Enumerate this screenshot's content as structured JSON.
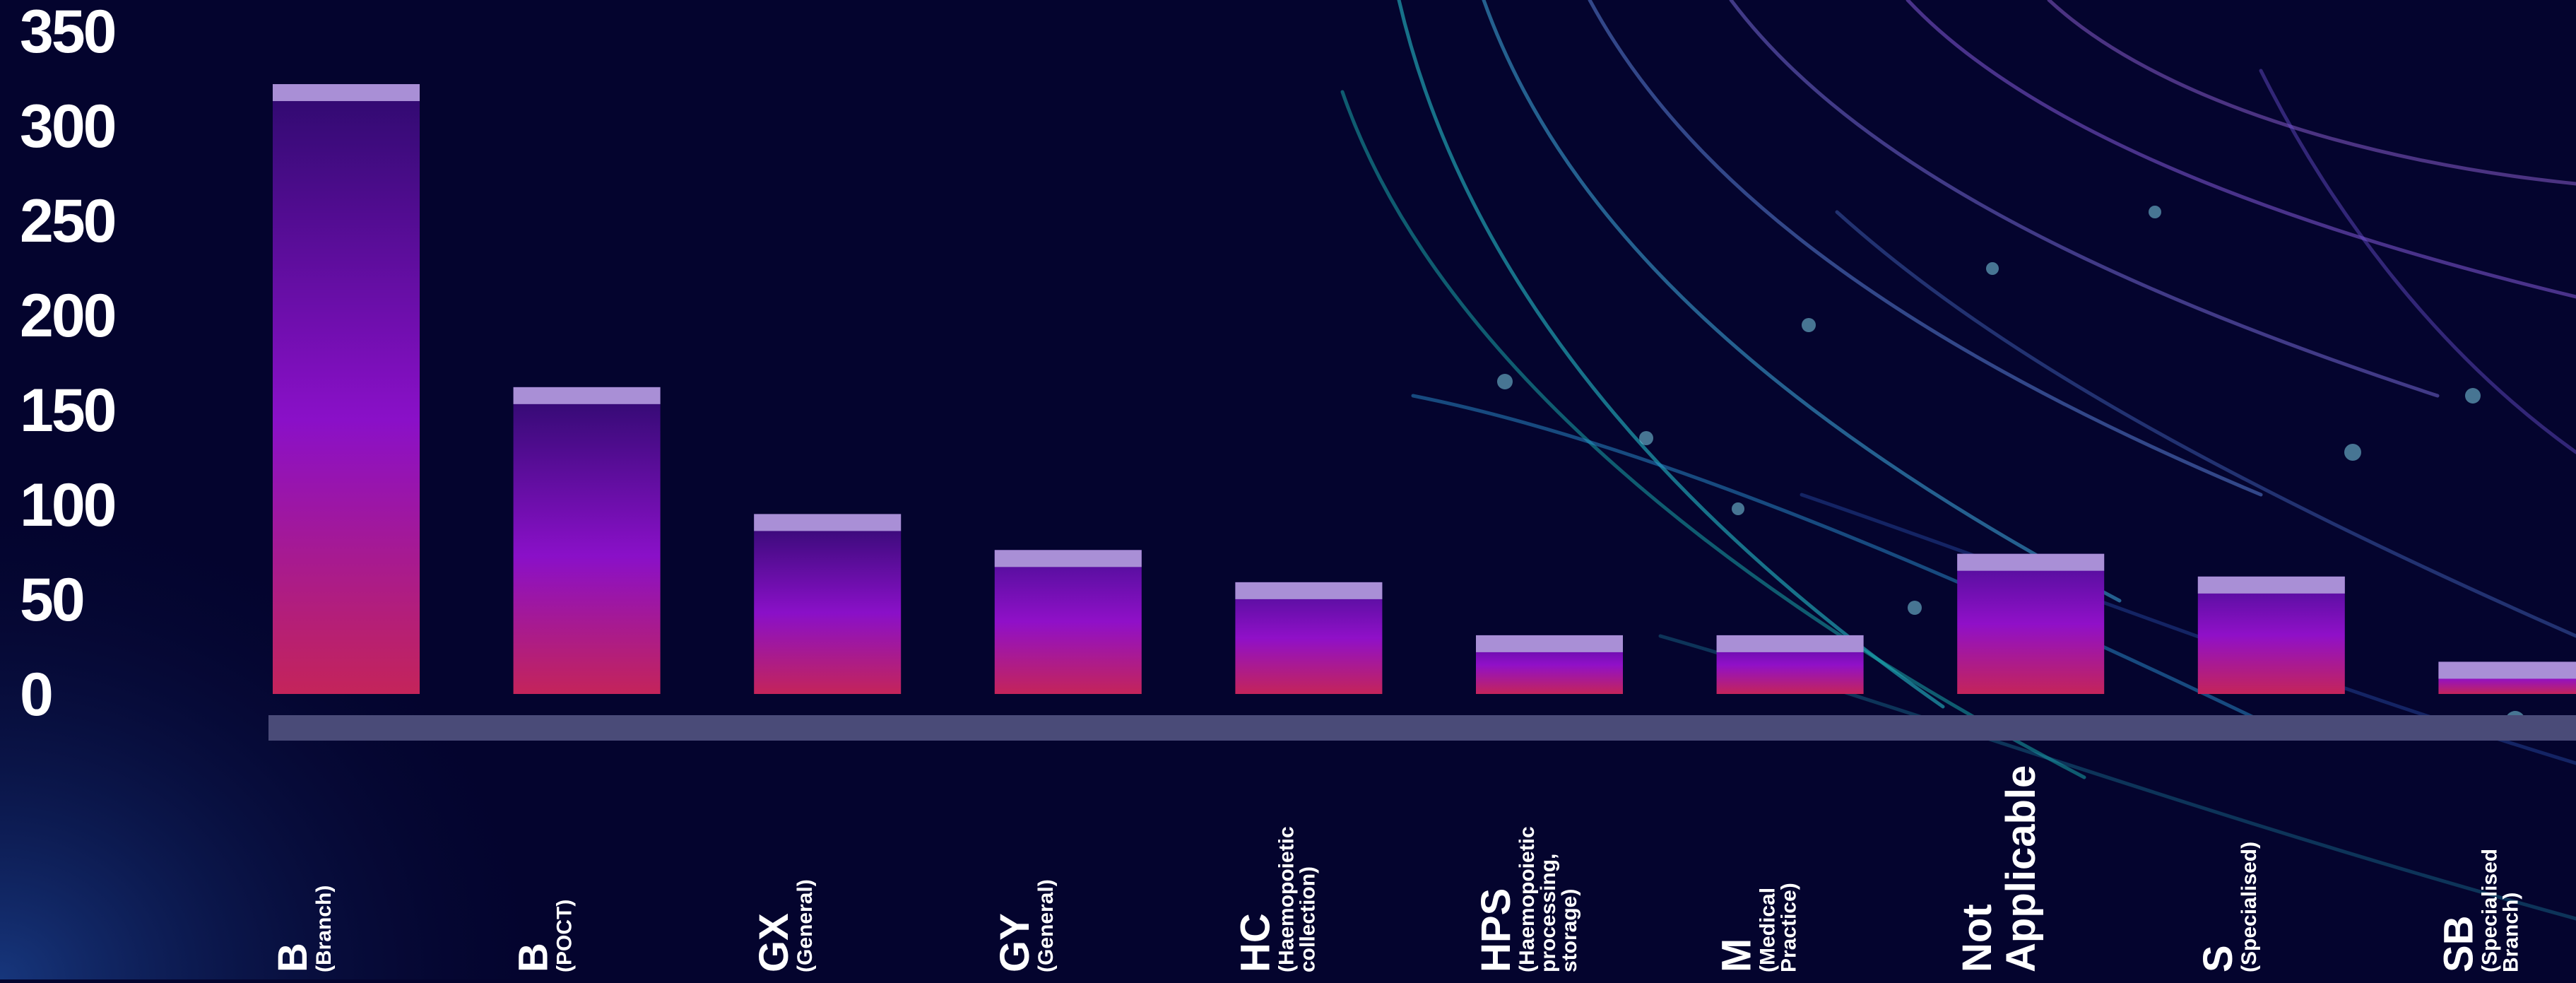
{
  "chart_data": {
    "type": "bar",
    "yticks": [
      "350",
      "300",
      "250",
      "200",
      "150",
      "100",
      "50",
      "0"
    ],
    "ylim": [
      0,
      350
    ],
    "grid": false,
    "legend": "none",
    "categories": [
      {
        "code": "B",
        "sub": [
          "(Branch)"
        ]
      },
      {
        "code": "B",
        "sub": [
          "(POCT)"
        ]
      },
      {
        "code": "GX",
        "sub": [
          "(General)"
        ]
      },
      {
        "code": "GY",
        "sub": [
          "(General)"
        ]
      },
      {
        "code": "HC",
        "sub": [
          "(Haemopoietic",
          "collection)"
        ]
      },
      {
        "code": "HPS",
        "sub": [
          "(Haemopoietic",
          "processing,",
          "storage)"
        ]
      },
      {
        "code": "M",
        "sub": [
          "(Medical",
          "Practice)"
        ]
      },
      {
        "code": "Not",
        "sub": [],
        "code2": "Applicable"
      },
      {
        "code": "S",
        "sub": [
          "(Specialised)"
        ]
      },
      {
        "code": "SB",
        "sub": [
          "(Specialised",
          "Branch)"
        ]
      }
    ],
    "values": [
      322,
      162,
      95,
      76,
      59,
      31,
      31,
      74,
      62,
      17
    ],
    "colors": {
      "background": "#04042e",
      "bar_top": "#2e0a6e",
      "bar_mid": "#8a10c8",
      "bar_bottom": "#c4245a",
      "bar_cap": "#a98fd6",
      "baseline": "#4a4b78",
      "text": "#ffffff"
    }
  }
}
